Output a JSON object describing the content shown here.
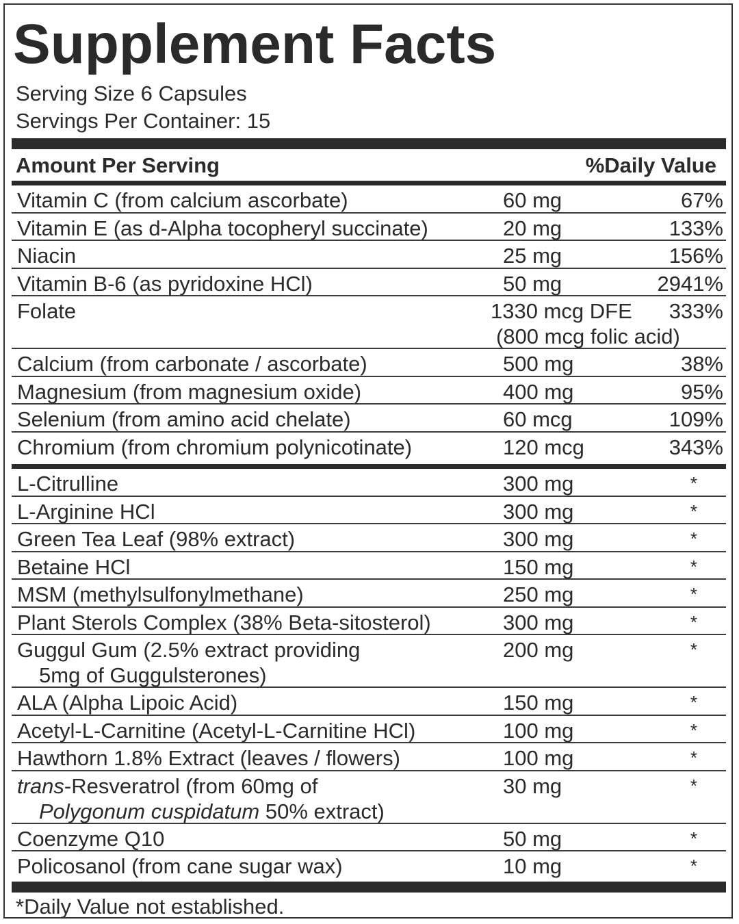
{
  "label": {
    "title": "Supplement Facts",
    "serving_size": "Serving Size 6 Capsules",
    "servings_per_container": "Servings Per Container: 15",
    "amount_header": "Amount Per Serving",
    "dv_header": "%Daily Value",
    "vitamins": [
      {
        "name": "Vitamin C (from calcium ascorbate)",
        "amount": "60 mg",
        "dv": "67%"
      },
      {
        "name": "Vitamin E (as d-Alpha tocopheryl succinate)",
        "amount": "20 mg",
        "dv": "133%"
      },
      {
        "name": "Niacin",
        "amount": "25 mg",
        "dv": "156%"
      },
      {
        "name": "Vitamin B-6 (as pyridoxine HCl)",
        "amount": "50 mg",
        "dv": "2941%"
      },
      {
        "name": "Folate",
        "amount": "1330 mcg DFE",
        "amount_line2": "(800 mcg folic acid)",
        "dv": "333%"
      },
      {
        "name": "Calcium (from carbonate / ascorbate)",
        "amount": "500 mg",
        "dv": "38%"
      },
      {
        "name": "Magnesium (from magnesium oxide)",
        "amount": "400 mg",
        "dv": "95%"
      },
      {
        "name": "Selenium (from amino acid chelate)",
        "amount": "60 mcg",
        "dv": "109%"
      },
      {
        "name": "Chromium (from chromium polynicotinate)",
        "amount": "120 mcg",
        "dv": "343%"
      }
    ],
    "others": [
      {
        "name": "L-Citrulline",
        "amount": "300 mg",
        "dv": "*"
      },
      {
        "name": "L-Arginine HCl",
        "amount": "300 mg",
        "dv": "*"
      },
      {
        "name": "Green Tea Leaf (98% extract)",
        "amount": "300 mg",
        "dv": "*"
      },
      {
        "name": "Betaine HCl",
        "amount": "150 mg",
        "dv": "*"
      },
      {
        "name": "MSM (methylsulfonylmethane)",
        "amount": "250 mg",
        "dv": "*"
      },
      {
        "name": "Plant Sterols Complex (38% Beta-sitosterol)",
        "amount": "300 mg",
        "dv": "*"
      },
      {
        "name": "Guggul Gum (2.5% extract providing",
        "name_line2": "5mg of Guggulsterones)",
        "amount": "200 mg",
        "dv": "*"
      },
      {
        "name": "ALA (Alpha Lipoic Acid)",
        "amount": "150 mg",
        "dv": "*"
      },
      {
        "name": "Acetyl-L-Carnitine (Acetyl-L-Carnitine HCl)",
        "amount": "100 mg",
        "dv": "*"
      },
      {
        "name": "Hawthorn 1.8% Extract (leaves / flowers)",
        "amount": "100 mg",
        "dv": "*"
      },
      {
        "name_italic": "trans",
        "name": "-Resveratrol (from 60mg of",
        "name_line2_italic": "Polygonum cuspidatum",
        "name_line2": " 50% extract)",
        "amount": "30 mg",
        "dv": "*"
      },
      {
        "name": "Coenzyme Q10",
        "amount": "50 mg",
        "dv": "*"
      },
      {
        "name": "Policosanol (from cane sugar wax)",
        "amount": "10 mg",
        "dv": "*"
      }
    ],
    "footnote": "*Daily Value not established."
  }
}
